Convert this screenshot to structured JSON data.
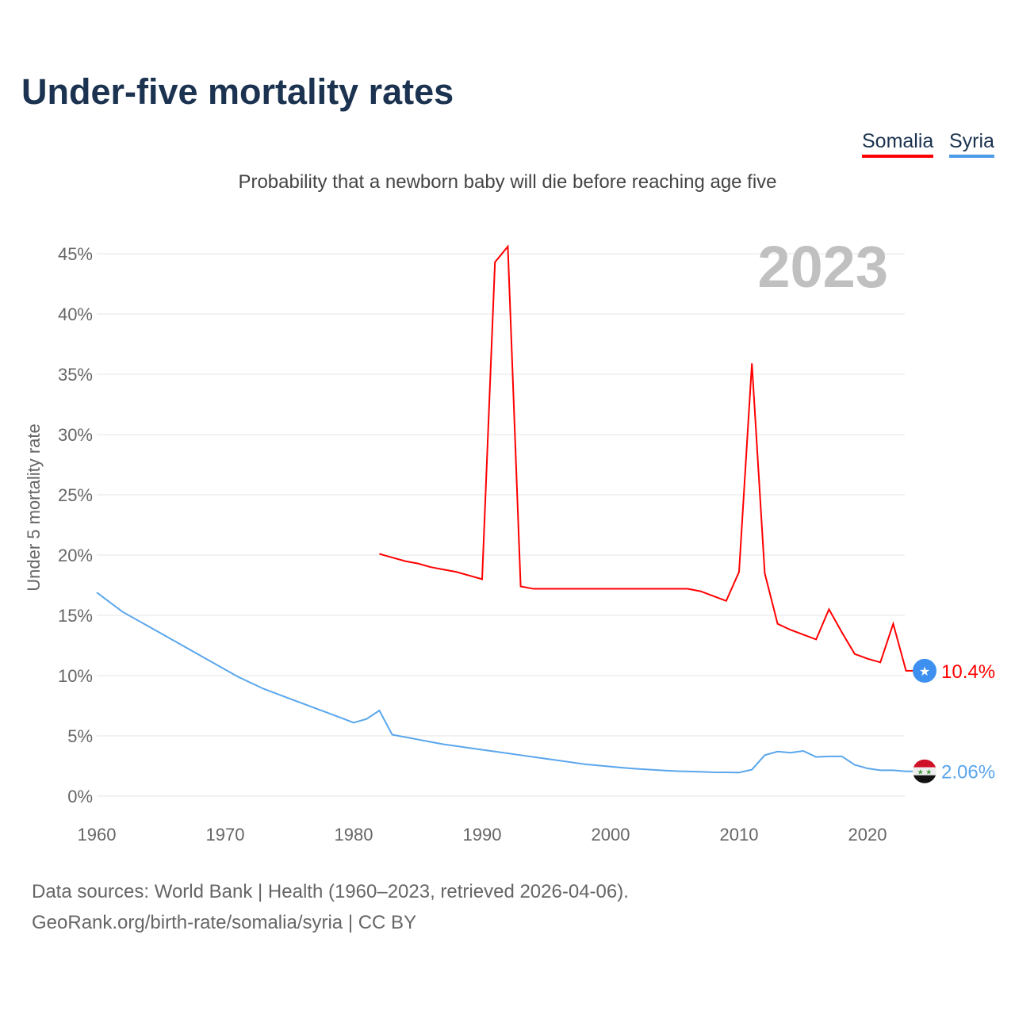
{
  "title": "Under-five mortality rates",
  "subtitle": "Probability that a newborn baby will die before reaching age five",
  "year_label": "2023",
  "legend": [
    "Somalia",
    "Syria"
  ],
  "footer": {
    "line1": "Data sources: World Bank | Health (1960–2023, retrieved 2026-04-06).",
    "line2": "GeoRank.org/birth-rate/somalia/syria | CC BY"
  },
  "chart_data": {
    "type": "line",
    "title": "Under-five mortality rates",
    "ylabel": "Under 5 mortality rate",
    "xlabel": "",
    "xlim": [
      1960,
      2023
    ],
    "ylim": [
      0,
      45
    ],
    "yticks": [
      "0%",
      "5%",
      "10%",
      "15%",
      "20%",
      "25%",
      "30%",
      "35%",
      "40%",
      "45%"
    ],
    "xticks": [
      "1960",
      "1970",
      "1980",
      "1990",
      "2000",
      "2010",
      "2020"
    ],
    "grid": true,
    "legend_position": "top-right",
    "series": [
      {
        "name": "Somalia",
        "color": "#ff0000",
        "end_label": "10.4%",
        "start_year": 1982,
        "values": [
          20.1,
          19.8,
          19.5,
          19.3,
          19.0,
          18.8,
          18.6,
          18.3,
          18.0,
          44.3,
          45.6,
          17.4,
          17.2,
          17.2,
          17.2,
          17.2,
          17.2,
          17.2,
          17.2,
          17.2,
          17.2,
          17.2,
          17.2,
          17.2,
          17.2,
          17.0,
          16.6,
          16.2,
          18.6,
          35.9,
          18.5,
          14.3,
          13.8,
          13.4,
          13.0,
          15.5,
          13.6,
          11.8,
          11.4,
          11.1,
          14.3,
          10.4
        ]
      },
      {
        "name": "Syria",
        "color": "#5aa6ec",
        "end_label": "2.06%",
        "start_year": 1960,
        "values": [
          16.9,
          16.1,
          15.3,
          14.7,
          14.1,
          13.5,
          12.9,
          12.3,
          11.7,
          11.1,
          10.5,
          9.9,
          9.4,
          8.9,
          8.5,
          8.1,
          7.7,
          7.3,
          6.9,
          6.5,
          6.1,
          6.4,
          7.1,
          5.1,
          4.9,
          4.7,
          4.5,
          4.3,
          4.15,
          4.0,
          3.85,
          3.7,
          3.55,
          3.4,
          3.25,
          3.1,
          2.95,
          2.8,
          2.65,
          2.55,
          2.45,
          2.35,
          2.27,
          2.2,
          2.14,
          2.08,
          2.05,
          2.02,
          1.98,
          1.97,
          1.96,
          2.2,
          3.4,
          3.7,
          3.6,
          3.75,
          3.25,
          3.3,
          3.3,
          2.6,
          2.3,
          2.15,
          2.15,
          2.06
        ]
      }
    ]
  }
}
